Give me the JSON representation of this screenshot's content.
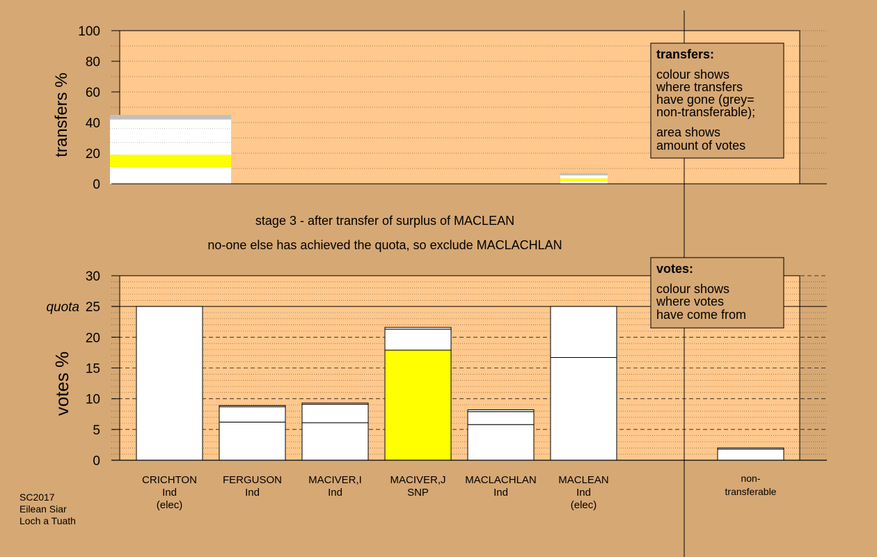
{
  "colors": {
    "background": "#d6a874",
    "plot_bg": "#ffc88c",
    "white_bar": "#ffffff",
    "yellow": "#ffff00",
    "grey": "#c0c0c0",
    "note_bg": "#d6a874"
  },
  "headings": {
    "stage": "stage 3 - after transfer of surplus of MACLEAN",
    "status": "no-one else has achieved the quota, so exclude MACLACHLAN"
  },
  "transfers_note": {
    "title": "transfers:",
    "lines": [
      "colour shows",
      "where transfers",
      "have gone (grey=",
      "non-transferable);"
    ],
    "lines2": [
      "area shows",
      "amount of votes"
    ]
  },
  "votes_note": {
    "title": "votes:",
    "lines": [
      "colour shows",
      "where votes",
      "have come from"
    ]
  },
  "footer": {
    "lines": [
      "SC2017",
      "Eilean Siar",
      "Loch a Tuath"
    ]
  },
  "chart_data": [
    {
      "type": "bar",
      "ylabel": "transfers %",
      "ylim": [
        0,
        100
      ],
      "yticks": [
        0,
        20,
        40,
        60,
        80,
        100
      ],
      "grid": "dotted",
      "bars": [
        {
          "slot": 0,
          "segments": [
            {
              "from": 0,
              "to": 11,
              "color": "white"
            },
            {
              "from": 11,
              "to": 19,
              "color": "yellow"
            },
            {
              "from": 19,
              "to": 42,
              "color": "white"
            },
            {
              "from": 42,
              "to": 45,
              "color": "grey"
            }
          ]
        },
        {
          "slot": 5,
          "segments": [
            {
              "from": 0,
              "to": 1.5,
              "color": "white"
            },
            {
              "from": 1.5,
              "to": 3.5,
              "color": "yellow"
            },
            {
              "from": 3.5,
              "to": 5.5,
              "color": "white"
            },
            {
              "from": 5.5,
              "to": 7,
              "color": "grey"
            }
          ]
        }
      ]
    },
    {
      "type": "bar",
      "ylabel": "votes %",
      "ylim": [
        0,
        30
      ],
      "yticks": [
        0,
        5,
        10,
        15,
        20,
        25,
        30
      ],
      "quota": 25,
      "quota_label": "quota",
      "grid": "dashed",
      "candidates": [
        {
          "name": "CRICHTON",
          "party": "Ind",
          "status": "(elec)",
          "segments": [
            {
              "from": 0,
              "to": 25,
              "color": "white"
            }
          ]
        },
        {
          "name": "FERGUSON",
          "party": "Ind",
          "status": "",
          "segments": [
            {
              "from": 0,
              "to": 6.2,
              "color": "white"
            },
            {
              "from": 6.2,
              "to": 8.7,
              "color": "white"
            },
            {
              "from": 8.7,
              "to": 8.9,
              "color": "white"
            }
          ]
        },
        {
          "name": "MACIVER,I",
          "party": "Ind",
          "status": "",
          "segments": [
            {
              "from": 0,
              "to": 6.1,
              "color": "white"
            },
            {
              "from": 6.1,
              "to": 9.1,
              "color": "white"
            },
            {
              "from": 9.1,
              "to": 9.3,
              "color": "white"
            }
          ]
        },
        {
          "name": "MACIVER,J",
          "party": "SNP",
          "status": "",
          "segments": [
            {
              "from": 0,
              "to": 17.9,
              "color": "yellow"
            },
            {
              "from": 17.9,
              "to": 21.3,
              "color": "white"
            },
            {
              "from": 21.3,
              "to": 21.6,
              "color": "white"
            }
          ]
        },
        {
          "name": "MACLACHLAN",
          "party": "Ind",
          "status": "",
          "segments": [
            {
              "from": 0,
              "to": 5.8,
              "color": "white"
            },
            {
              "from": 5.8,
              "to": 7.9,
              "color": "white"
            },
            {
              "from": 7.9,
              "to": 8.2,
              "color": "white"
            }
          ]
        },
        {
          "name": "MACLEAN",
          "party": "Ind",
          "status": "(elec)",
          "segments": [
            {
              "from": 0,
              "to": 16.7,
              "color": "white"
            },
            {
              "from": 16.7,
              "to": 25,
              "color": "white"
            }
          ]
        }
      ],
      "nontransferable": {
        "label_lines": [
          "non-",
          "transferable"
        ],
        "segments": [
          {
            "from": 0,
            "to": 1.8,
            "color": "white"
          },
          {
            "from": 1.8,
            "to": 2.0,
            "color": "white"
          }
        ]
      }
    }
  ]
}
